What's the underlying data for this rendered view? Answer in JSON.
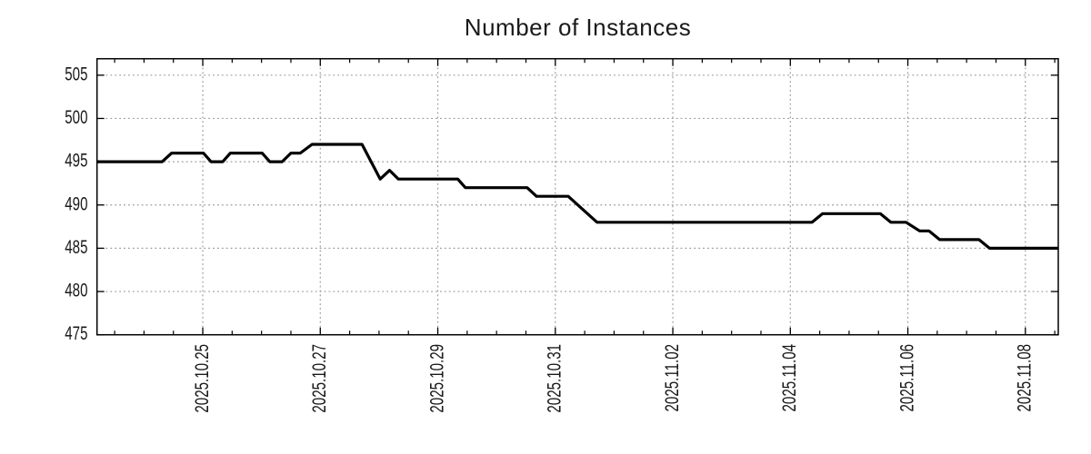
{
  "title": "Number of Instances",
  "colors": {
    "background": "#ffffff",
    "series_line": "#000000",
    "grid": "#9b9b9b",
    "axis": "#000000",
    "text": "#1a1a1a"
  },
  "chart_data": {
    "type": "line",
    "title": "Number of Instances",
    "xlabel": "",
    "ylabel": "",
    "grid": true,
    "legend": false,
    "x_unit": "date as day-of-October-2025 decimal (values above 31 are November: day minus 31)",
    "x_range": [
      23.2,
      39.56
    ],
    "y_range": [
      475,
      506.9
    ],
    "x_minor_step": 0.5,
    "x_ticks": [
      {
        "value": 25,
        "label": "2025.10.25"
      },
      {
        "value": 27,
        "label": "2025.10.27"
      },
      {
        "value": 29,
        "label": "2025.10.29"
      },
      {
        "value": 31,
        "label": "2025.10.31"
      },
      {
        "value": 33,
        "label": "2025.11.02"
      },
      {
        "value": 35,
        "label": "2025.11.04"
      },
      {
        "value": 37,
        "label": "2025.11.06"
      },
      {
        "value": 39,
        "label": "2025.11.08"
      }
    ],
    "y_ticks": [
      {
        "value": 475,
        "label": "475"
      },
      {
        "value": 480,
        "label": "480"
      },
      {
        "value": 485,
        "label": "485"
      },
      {
        "value": 490,
        "label": "490"
      },
      {
        "value": 495,
        "label": "495"
      },
      {
        "value": 500,
        "label": "500"
      },
      {
        "value": 505,
        "label": "505"
      }
    ],
    "series": [
      {
        "color": "#000000",
        "points": [
          [
            23.2,
            495
          ],
          [
            24.31,
            495
          ],
          [
            24.47,
            496
          ],
          [
            25.01,
            496
          ],
          [
            25.14,
            495
          ],
          [
            25.34,
            495
          ],
          [
            25.47,
            496
          ],
          [
            26.01,
            496
          ],
          [
            26.14,
            495
          ],
          [
            26.35,
            495
          ],
          [
            26.5,
            496
          ],
          [
            26.66,
            496
          ],
          [
            26.86,
            497
          ],
          [
            27.71,
            497
          ],
          [
            28.02,
            493
          ],
          [
            28.18,
            494
          ],
          [
            28.33,
            493
          ],
          [
            29.34,
            493
          ],
          [
            29.47,
            492
          ],
          [
            30.52,
            492
          ],
          [
            30.68,
            491
          ],
          [
            31.22,
            491
          ],
          [
            31.71,
            488
          ],
          [
            35.37,
            488
          ],
          [
            35.55,
            489
          ],
          [
            36.53,
            489
          ],
          [
            36.71,
            488
          ],
          [
            36.97,
            488
          ],
          [
            37.2,
            487
          ],
          [
            37.36,
            487
          ],
          [
            37.54,
            486
          ],
          [
            38.21,
            486
          ],
          [
            38.39,
            485
          ],
          [
            39.56,
            485
          ]
        ]
      }
    ]
  }
}
